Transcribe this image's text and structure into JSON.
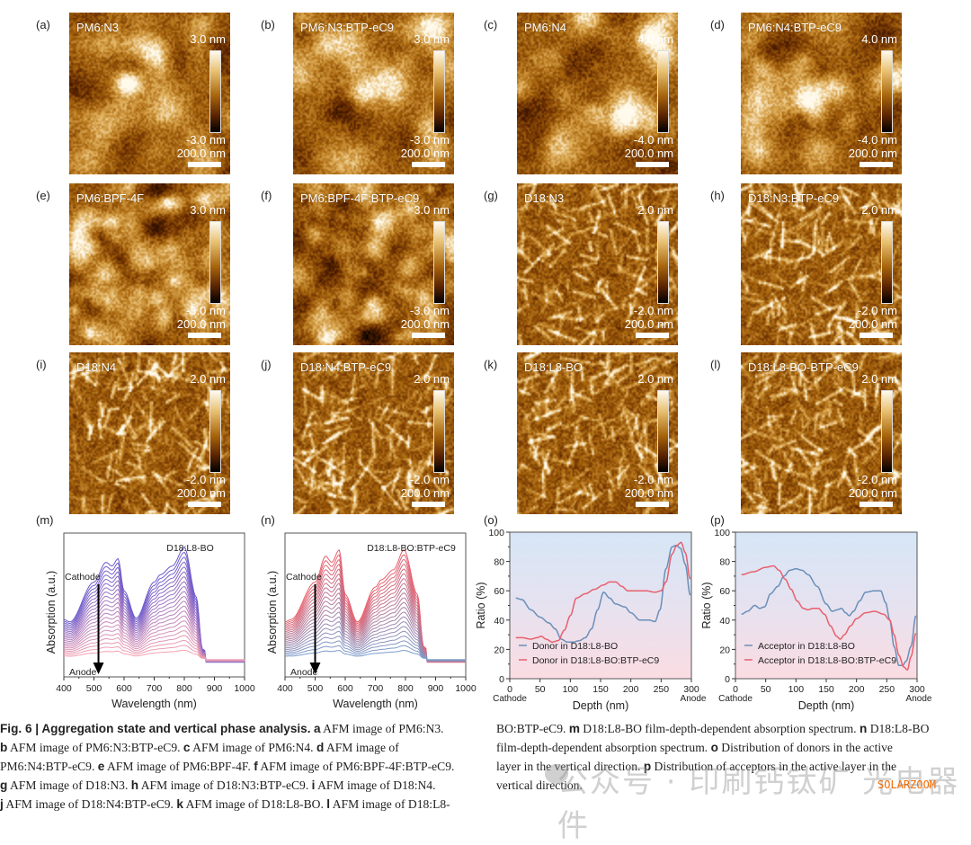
{
  "afm_panels": [
    {
      "letter": "(a)",
      "sample": "PM6:N3",
      "cmax": "3.0 nm",
      "cmin": "-3.0 nm",
      "scale": "200.0 nm",
      "texture": "blob",
      "seed": 1
    },
    {
      "letter": "(b)",
      "sample": "PM6:N3:BTP-eC9",
      "cmax": "3.0 nm",
      "cmin": "-3.0 nm",
      "scale": "200.0 nm",
      "texture": "blob",
      "seed": 2
    },
    {
      "letter": "(c)",
      "sample": "PM6:N4",
      "cmax": "4.0 nm",
      "cmin": "-4.0 nm",
      "scale": "200.0 nm",
      "texture": "blob",
      "seed": 3
    },
    {
      "letter": "(d)",
      "sample": "PM6:N4:BTP-eC9",
      "cmax": "4.0 nm",
      "cmin": "-4.0 nm",
      "scale": "200.0 nm",
      "texture": "blob",
      "seed": 4
    },
    {
      "letter": "(e)",
      "sample": "PM6:BPF-4F",
      "cmax": "3.0 nm",
      "cmin": "-3.0 nm",
      "scale": "200.0 nm",
      "texture": "fine",
      "seed": 5
    },
    {
      "letter": "(f)",
      "sample": "PM6:BPF-4F:BTP-eC9",
      "cmax": "3.0 nm",
      "cmin": "-3.0 nm",
      "scale": "200.0 nm",
      "texture": "fine",
      "seed": 6
    },
    {
      "letter": "(g)",
      "sample": "D18:N3",
      "cmax": "2.0 nm",
      "cmin": "-2.0 nm",
      "scale": "200.0 nm",
      "texture": "fiber",
      "seed": 7
    },
    {
      "letter": "(h)",
      "sample": "D18:N3:BTP-eC9",
      "cmax": "2.0 nm",
      "cmin": "-2.0 nm",
      "scale": "200.0 nm",
      "texture": "fiber",
      "seed": 8
    },
    {
      "letter": "(i)",
      "sample": "D18:N4",
      "cmax": "2.0 nm",
      "cmin": "-2.0 nm",
      "scale": "200.0 nm",
      "texture": "fiber",
      "seed": 9
    },
    {
      "letter": "(j)",
      "sample": "D18:N4:BTP-eC9",
      "cmax": "2.0 nm",
      "cmin": "-2.0 nm",
      "scale": "200.0 nm",
      "texture": "fiber",
      "seed": 10
    },
    {
      "letter": "(k)",
      "sample": "D18:L8-BO",
      "cmax": "2.0 nm",
      "cmin": "-2.0 nm",
      "scale": "200.0 nm",
      "texture": "fiber",
      "seed": 11
    },
    {
      "letter": "(l)",
      "sample": "D18:L8-BO-BTP-eC9",
      "cmax": "2.0 nm",
      "cmin": "-2.0 nm",
      "scale": "200.0 nm",
      "texture": "fiber",
      "seed": 12
    }
  ],
  "chart_data": [
    {
      "id": "m",
      "letter": "(m)",
      "type": "line",
      "title": "D18:L8-BO",
      "xlabel": "Wavelength (nm)",
      "ylabel": "Absorption (a.u.)",
      "xlim": [
        400,
        1000
      ],
      "xticks": [
        400,
        500,
        600,
        700,
        800,
        900,
        1000
      ],
      "annotations": {
        "top": "Cathode",
        "bottom": "Anode",
        "arrow_x": 515
      },
      "n_curves": 22,
      "color_top": "#6a5acd",
      "color_bottom": "#f4a0b0",
      "profile": {
        "x": [
          400,
          420,
          500,
          540,
          560,
          580,
          600,
          640,
          700,
          720,
          760,
          800,
          840,
          860,
          900,
          1000
        ],
        "y": [
          0.42,
          0.4,
          0.72,
          0.88,
          0.85,
          0.91,
          0.65,
          0.43,
          0.72,
          0.78,
          0.85,
          1.0,
          0.6,
          0.18,
          0.06,
          0.07
        ]
      },
      "peak_labels": {
        "peak1_nm": 540,
        "peak2_nm": 582,
        "peak3_nm": 800
      }
    },
    {
      "id": "n",
      "letter": "(n)",
      "type": "line",
      "title": "D18:L8-BO:BTP-eC9",
      "xlabel": "Wavelength (nm)",
      "ylabel": "Absorption (a.u.)",
      "xlim": [
        400,
        1000
      ],
      "xticks": [
        400,
        500,
        600,
        700,
        800,
        900,
        1000
      ],
      "annotations": {
        "top": "Cathode",
        "bottom": "Anode",
        "arrow_x": 500
      },
      "n_curves": 22,
      "color_top": "#e8606e",
      "color_bottom": "#7a9ccc",
      "profile": {
        "x": [
          400,
          420,
          500,
          535,
          555,
          580,
          600,
          640,
          700,
          720,
          760,
          795,
          840,
          860,
          900,
          1000
        ],
        "y": [
          0.4,
          0.42,
          0.72,
          0.93,
          0.88,
          0.98,
          0.62,
          0.4,
          0.68,
          0.74,
          0.82,
          0.98,
          0.62,
          0.2,
          0.06,
          0.07
        ]
      },
      "peak_labels": {
        "peak1_nm": 535,
        "peak2_nm": 580,
        "peak3_nm": 795
      }
    },
    {
      "id": "o",
      "letter": "(o)",
      "type": "line",
      "xlabel": "Depth (nm)",
      "ylabel": "Ratio (%)",
      "xlim": [
        0,
        300
      ],
      "ylim": [
        0,
        100
      ],
      "xticks": [
        0,
        50,
        100,
        150,
        200,
        250,
        300
      ],
      "yticks": [
        0,
        20,
        40,
        60,
        80,
        100
      ],
      "x_end_labels": {
        "left": "Cathode",
        "right": "Anode"
      },
      "legend_position": "bottom-left",
      "series": [
        {
          "name": "Donor in D18:L8-BO",
          "color": "#6a8fb8",
          "x": [
            10,
            20,
            35,
            50,
            65,
            75,
            85,
            95,
            105,
            115,
            125,
            135,
            145,
            155,
            165,
            175,
            190,
            200,
            215,
            230,
            240,
            248,
            258,
            268,
            275,
            282,
            290,
            298
          ],
          "y": [
            55,
            54,
            47,
            42,
            38,
            34,
            27,
            25,
            25,
            26,
            28,
            34,
            47,
            59,
            55,
            51,
            49,
            45,
            40,
            40,
            39,
            47,
            75,
            90,
            91,
            89,
            78,
            57
          ]
        },
        {
          "name": "Donor in D18:L8-BO:BTP-eC9",
          "color": "#e8606e",
          "x": [
            10,
            20,
            35,
            45,
            52,
            60,
            70,
            80,
            90,
            100,
            110,
            125,
            140,
            155,
            165,
            175,
            185,
            195,
            210,
            225,
            240,
            250,
            258,
            268,
            276,
            283,
            290,
            298
          ],
          "y": [
            28,
            28,
            27,
            28,
            29,
            27,
            25,
            26,
            33,
            43,
            55,
            58,
            61,
            64,
            66,
            66,
            63,
            60,
            60,
            60,
            59,
            60,
            66,
            85,
            91,
            93,
            86,
            68
          ]
        }
      ]
    },
    {
      "id": "p",
      "letter": "(p)",
      "type": "line",
      "xlabel": "Depth (nm)",
      "ylabel": "Ratio (%)",
      "xlim": [
        0,
        300
      ],
      "ylim": [
        0,
        100
      ],
      "xticks": [
        0,
        50,
        100,
        150,
        200,
        250,
        300
      ],
      "yticks": [
        0,
        20,
        40,
        60,
        80,
        100
      ],
      "x_end_labels": {
        "left": "Cathode",
        "right": "Anode"
      },
      "legend_position": "bottom-left",
      "series": [
        {
          "name": "Acceptor in D18:L8-BO",
          "color": "#6a8fb8",
          "x": [
            10,
            20,
            32,
            40,
            48,
            58,
            70,
            80,
            90,
            100,
            110,
            120,
            135,
            150,
            160,
            168,
            175,
            182,
            188,
            195,
            205,
            215,
            230,
            240,
            248,
            255,
            262,
            270,
            276,
            282,
            290,
            298
          ],
          "y": [
            44,
            46,
            50,
            48,
            49,
            58,
            63,
            70,
            74,
            75,
            74,
            71,
            63,
            51,
            46,
            47,
            48,
            45,
            43,
            46,
            53,
            59,
            60,
            60,
            52,
            40,
            22,
            9,
            9,
            12,
            22,
            43
          ]
        },
        {
          "name": "Acceptor in D18:L8-BO:BTP-eC9",
          "color": "#e8606e",
          "x": [
            10,
            30,
            50,
            63,
            72,
            82,
            92,
            102,
            112,
            120,
            128,
            137,
            147,
            157,
            167,
            173,
            180,
            190,
            200,
            215,
            230,
            245,
            255,
            262,
            270,
            278,
            284,
            290,
            298
          ],
          "y": [
            71,
            73,
            76,
            77,
            74,
            68,
            61,
            53,
            48,
            47,
            48,
            48,
            44,
            36,
            29,
            27,
            30,
            36,
            41,
            45,
            46,
            44,
            40,
            30,
            16,
            8,
            6,
            15,
            31
          ]
        }
      ]
    }
  ],
  "caption": {
    "fig_label": "Fig. 6 | Aggregation state and vertical phase analysis.",
    "left_lines": [
      [
        {
          "b": "a"
        },
        {
          "t": " AFM image of PM6:N3."
        }
      ],
      [
        {
          "b": "b"
        },
        {
          "t": " AFM image of PM6:N3:BTP-eC9. "
        },
        {
          "b": "c"
        },
        {
          "t": " AFM image of PM6:N4. "
        },
        {
          "b": "d"
        },
        {
          "t": " AFM image of"
        }
      ],
      [
        {
          "t": "PM6:N4:BTP-eC9. "
        },
        {
          "b": "e"
        },
        {
          "t": " AFM image of PM6:BPF-4F. "
        },
        {
          "b": "f"
        },
        {
          "t": " AFM image of PM6:BPF-4F:BTP-eC9."
        }
      ],
      [
        {
          "b": "g"
        },
        {
          "t": " AFM image of D18:N3. "
        },
        {
          "b": "h"
        },
        {
          "t": " AFM image of D18:N3:BTP-eC9. "
        },
        {
          "b": "i"
        },
        {
          "t": " AFM image of D18:N4."
        }
      ],
      [
        {
          "b": "j"
        },
        {
          "t": " AFM image of D18:N4:BTP-eC9. "
        },
        {
          "b": "k"
        },
        {
          "t": " AFM image of D18:L8-BO. "
        },
        {
          "b": "l"
        },
        {
          "t": " AFM image of D18:L8-"
        }
      ]
    ],
    "right_lines": [
      [
        {
          "t": "BO:BTP-eC9. "
        },
        {
          "b": "m"
        },
        {
          "t": " D18:L8-BO film-depth-dependent absorption spectrum. "
        },
        {
          "b": "n"
        },
        {
          "t": " D18:L8-BO"
        }
      ],
      [
        {
          "t": "film-depth-dependent absorption spectrum. "
        },
        {
          "b": "o"
        },
        {
          "t": " Distribution of donors in the active"
        }
      ],
      [
        {
          "t": "layer in the vertical direction. "
        },
        {
          "b": "p"
        },
        {
          "t": " Distribution of acceptors in the active layer in the"
        }
      ],
      [
        {
          "t": "vertical direction."
        }
      ]
    ]
  },
  "watermark": {
    "text": "公众号 · 印刷钙钛矿 光电器件",
    "brand": "SOLARZOOM"
  }
}
